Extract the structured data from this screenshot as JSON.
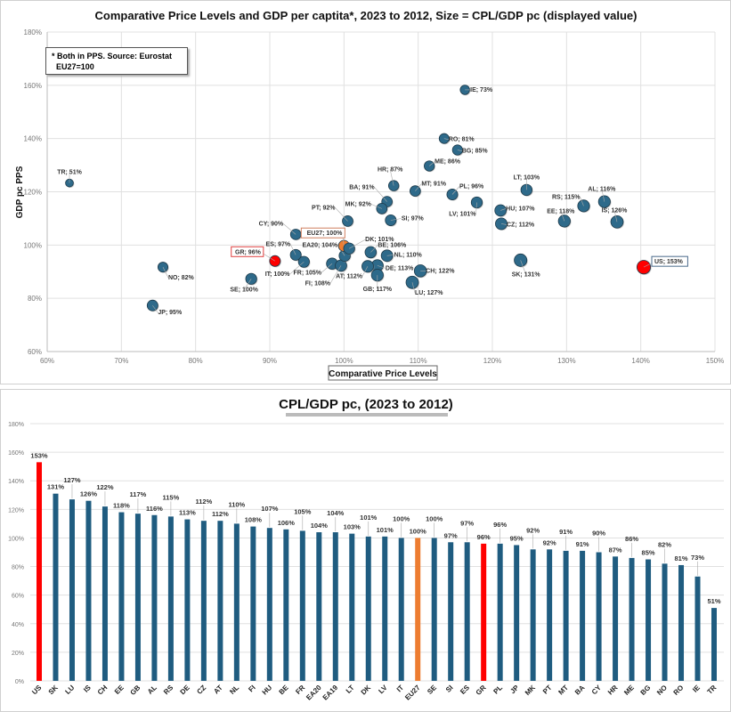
{
  "scatter": {
    "chart_data": {
      "type": "scatter",
      "title": "Comparative  Price Levels and GDP per captita*,  2023 to 2012, Size = CPL/GDP  pc (displayed value)",
      "xlabel": "Comparative Price Levels",
      "ylabel": "GDP pc PPS",
      "xlim": [
        60,
        150
      ],
      "ylim": [
        60,
        180
      ],
      "xticks": [
        "60%",
        "70%",
        "80%",
        "90%",
        "100%",
        "110%",
        "120%",
        "130%",
        "140%",
        "150%"
      ],
      "yticks": [
        "60%",
        "80%",
        "100%",
        "120%",
        "140%",
        "160%",
        "180%"
      ],
      "grid": true,
      "note_lines": [
        "* Both in PPS. Source: Eurostat",
        "EU27=100"
      ],
      "points": [
        {
          "code": "TR",
          "x": 63.0,
          "y": 123.3,
          "size": 51
        },
        {
          "code": "NO",
          "x": 75.6,
          "y": 91.7,
          "size": 82
        },
        {
          "code": "JP",
          "x": 74.2,
          "y": 77.3,
          "size": 95
        },
        {
          "code": "SE",
          "x": 87.5,
          "y": 87.3,
          "size": 100
        },
        {
          "code": "GR",
          "x": 90.7,
          "y": 94.0,
          "size": 96,
          "highlight": "#ff0000"
        },
        {
          "code": "CY",
          "x": 93.5,
          "y": 104.0,
          "size": 90
        },
        {
          "code": "ES",
          "x": 93.5,
          "y": 96.3,
          "size": 97
        },
        {
          "code": "IT",
          "x": 94.6,
          "y": 93.7,
          "size": 100
        },
        {
          "code": "FR",
          "x": 98.4,
          "y": 93.0,
          "size": 105
        },
        {
          "code": "FI",
          "x": 99.6,
          "y": 92.3,
          "size": 108
        },
        {
          "code": "EA20",
          "x": 100.1,
          "y": 96.0,
          "size": 104
        },
        {
          "code": "EU27",
          "x": 100.0,
          "y": 99.7,
          "size": 100,
          "highlight": "#ed7d31"
        },
        {
          "code": "DK",
          "x": 100.7,
          "y": 98.7,
          "size": 101
        },
        {
          "code": "PT",
          "x": 100.5,
          "y": 109.0,
          "size": 92
        },
        {
          "code": "RO",
          "x": 113.5,
          "y": 140.0,
          "size": 81
        },
        {
          "code": "BG",
          "x": 115.3,
          "y": 135.7,
          "size": 85
        },
        {
          "code": "ME",
          "x": 111.5,
          "y": 129.7,
          "size": 86
        },
        {
          "code": "HR",
          "x": 106.7,
          "y": 122.3,
          "size": 87
        },
        {
          "code": "MT",
          "x": 109.6,
          "y": 120.3,
          "size": 91
        },
        {
          "code": "PL",
          "x": 114.6,
          "y": 119.0,
          "size": 96
        },
        {
          "code": "BA",
          "x": 105.8,
          "y": 116.3,
          "size": 91
        },
        {
          "code": "MK",
          "x": 105.1,
          "y": 113.7,
          "size": 92
        },
        {
          "code": "SI",
          "x": 106.3,
          "y": 109.3,
          "size": 97
        },
        {
          "code": "LV",
          "x": 117.9,
          "y": 116.0,
          "size": 101
        },
        {
          "code": "LT",
          "x": 124.6,
          "y": 120.7,
          "size": 103
        },
        {
          "code": "HU",
          "x": 121.1,
          "y": 113.0,
          "size": 107
        },
        {
          "code": "CZ",
          "x": 121.2,
          "y": 108.0,
          "size": 112
        },
        {
          "code": "EE",
          "x": 129.7,
          "y": 109.0,
          "size": 118
        },
        {
          "code": "RS",
          "x": 132.3,
          "y": 114.7,
          "size": 115
        },
        {
          "code": "AL",
          "x": 135.1,
          "y": 116.3,
          "size": 116
        },
        {
          "code": "IS",
          "x": 136.8,
          "y": 108.7,
          "size": 126
        },
        {
          "code": "US",
          "x": 140.4,
          "y": 91.7,
          "size": 153,
          "highlight": "#ff0000"
        },
        {
          "code": "SK",
          "x": 123.8,
          "y": 94.3,
          "size": 131
        },
        {
          "code": "BE",
          "x": 103.6,
          "y": 97.3,
          "size": 106
        },
        {
          "code": "NL",
          "x": 105.8,
          "y": 96.0,
          "size": 110
        },
        {
          "code": "DE",
          "x": 104.5,
          "y": 92.3,
          "size": 113
        },
        {
          "code": "AT",
          "x": 103.2,
          "y": 92.0,
          "size": 112
        },
        {
          "code": "GB",
          "x": 104.5,
          "y": 88.7,
          "size": 117
        },
        {
          "code": "CH",
          "x": 110.3,
          "y": 90.3,
          "size": 122
        },
        {
          "code": "LU",
          "x": 109.2,
          "y": 86.0,
          "size": 127
        },
        {
          "code": "IE",
          "x": 116.3,
          "y": 158.3,
          "size": 73
        }
      ],
      "colors": {
        "default": "#2e6a8a",
        "highlight_red": "#ff0000",
        "highlight_orange": "#ed7d31"
      }
    }
  },
  "bars": {
    "chart_data": {
      "type": "bar",
      "title": "CPL/GDP pc, (2023 to 2012)",
      "ylim": [
        0,
        180
      ],
      "yticks": [
        "0%",
        "20%",
        "40%",
        "60%",
        "80%",
        "100%",
        "120%",
        "140%",
        "160%",
        "180%"
      ],
      "grid": true,
      "categories": [
        "US",
        "SK",
        "LU",
        "IS",
        "CH",
        "EE",
        "GB",
        "AL",
        "RS",
        "DE",
        "CZ",
        "AT",
        "NL",
        "FI",
        "HU",
        "BE",
        "FR",
        "EA20",
        "EA19",
        "LT",
        "DK",
        "LV",
        "IT",
        "EU27",
        "SE",
        "SI",
        "ES",
        "GR",
        "PL",
        "JP",
        "MK",
        "PT",
        "MT",
        "BA",
        "CY",
        "HR",
        "ME",
        "BG",
        "NO",
        "RO",
        "IE",
        "TR"
      ],
      "values": [
        153,
        131,
        127,
        126,
        122,
        118,
        117,
        116,
        115,
        113,
        112,
        112,
        110,
        108,
        107,
        106,
        105,
        104,
        104,
        103,
        101,
        101,
        100,
        100,
        100,
        97,
        97,
        96,
        96,
        95,
        92,
        92,
        91,
        91,
        90,
        87,
        86,
        85,
        82,
        81,
        73,
        51
      ],
      "highlight": {
        "US": "#ff0000",
        "GR": "#ff0000",
        "EU27": "#ed7d31"
      },
      "colors": {
        "default": "#1f5c80"
      }
    }
  }
}
